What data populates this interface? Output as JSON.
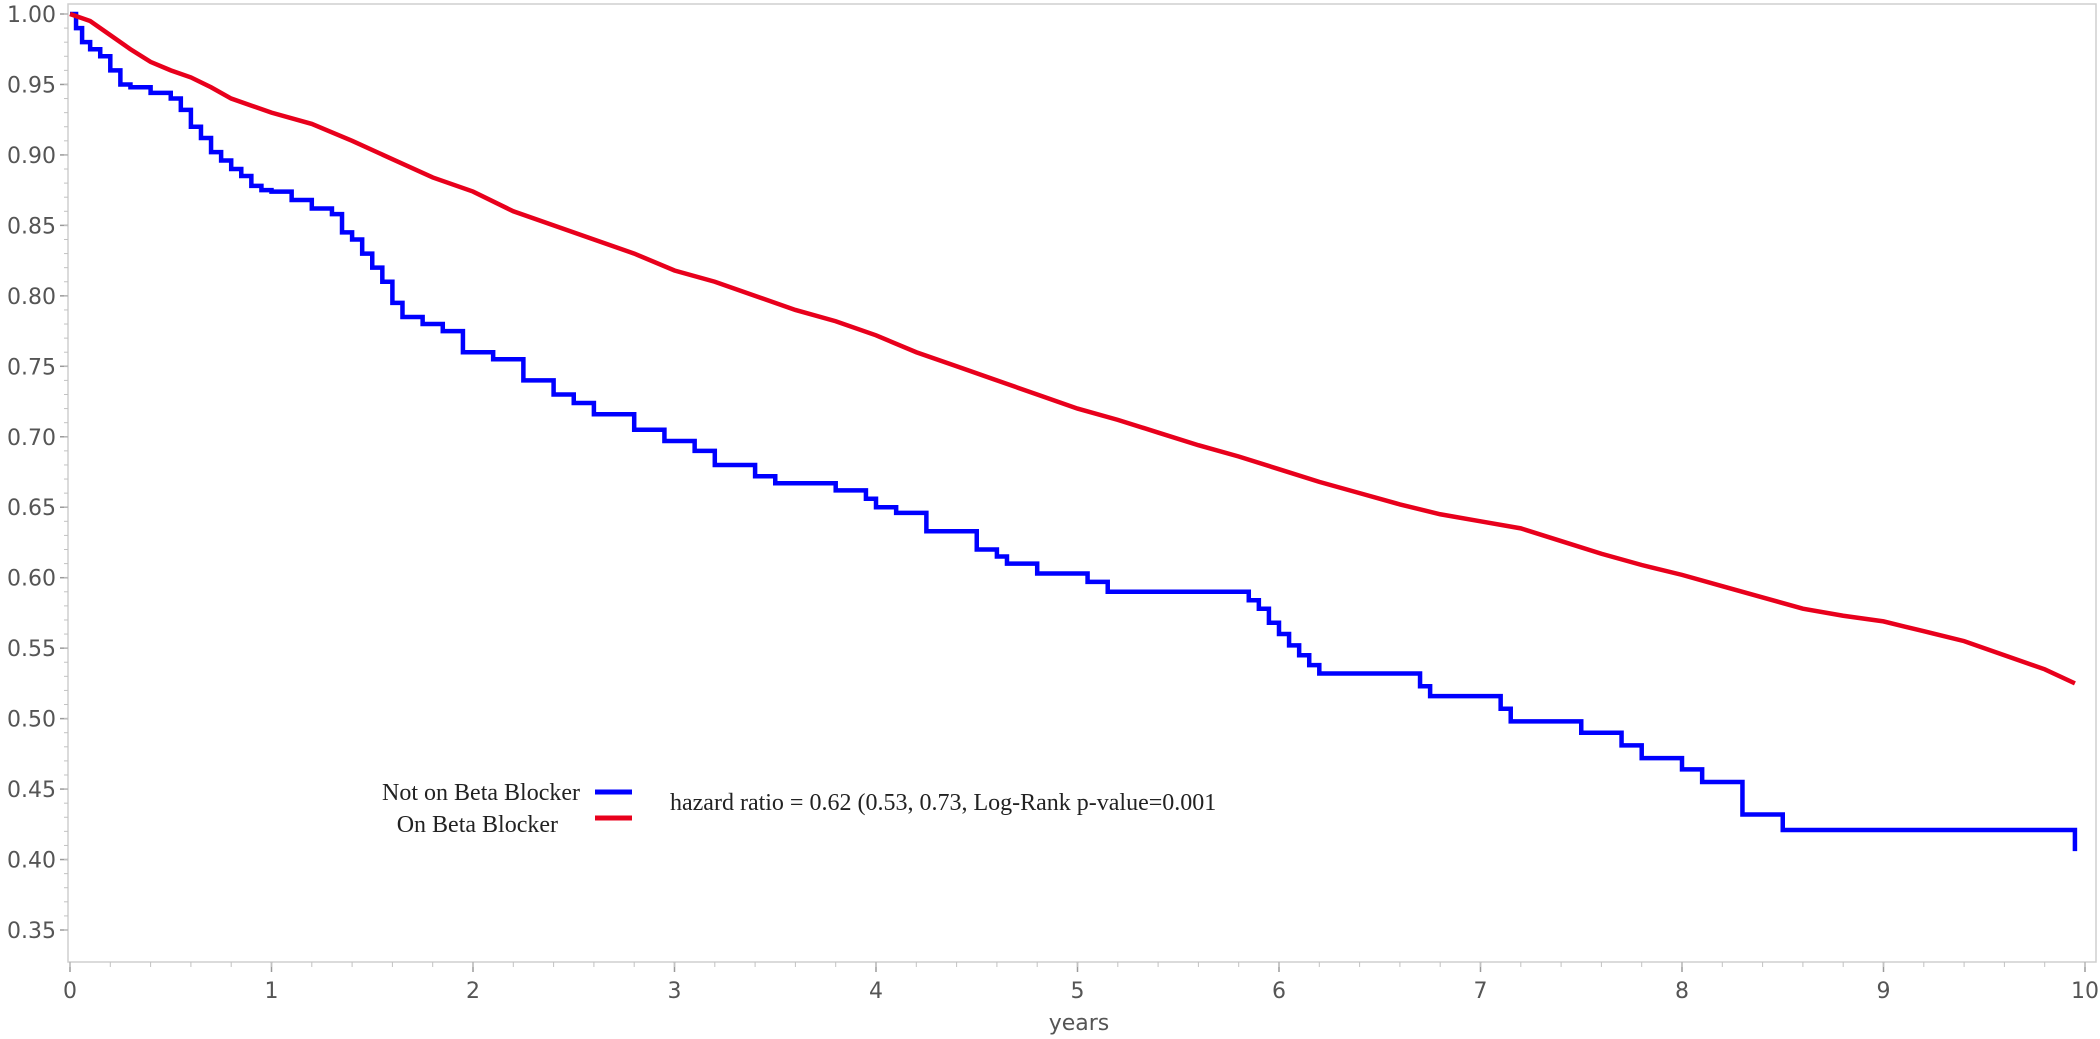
{
  "chart_data": {
    "type": "line",
    "title": "",
    "xlabel": "years",
    "ylabel": "",
    "xlim": [
      0,
      10
    ],
    "ylim": [
      0.35,
      1.0
    ],
    "x_ticks": [
      0,
      1,
      2,
      3,
      4,
      5,
      6,
      7,
      8,
      9,
      10
    ],
    "x_tick_labels": [
      "0",
      "1",
      "2",
      "3",
      "4",
      "5",
      "6",
      "7",
      "8",
      "9",
      "10"
    ],
    "y_ticks": [
      1.0,
      0.95,
      0.9,
      0.85,
      0.8,
      0.75,
      0.7,
      0.65,
      0.6,
      0.55,
      0.5,
      0.45,
      0.4,
      0.35
    ],
    "y_tick_labels": [
      "1.00",
      "0.95",
      "0.90",
      "0.85",
      "0.80",
      "0.75",
      "0.70",
      "0.65",
      "0.60",
      "0.55",
      "0.50",
      "0.45",
      "0.40",
      "0.35"
    ],
    "grid": false,
    "legend_position": "bottom-left",
    "annotation": "hazard ratio = 0.62 (0.53, 0.73, Log-Rank p-value=0.001",
    "series": [
      {
        "name": "Not on Beta Blocker",
        "color": "#0000ff",
        "step": true,
        "x": [
          0,
          0.03,
          0.06,
          0.1,
          0.15,
          0.2,
          0.25,
          0.3,
          0.4,
          0.5,
          0.55,
          0.6,
          0.65,
          0.7,
          0.75,
          0.8,
          0.85,
          0.9,
          0.95,
          1.0,
          1.1,
          1.2,
          1.3,
          1.35,
          1.4,
          1.45,
          1.5,
          1.55,
          1.6,
          1.65,
          1.75,
          1.85,
          1.95,
          2.1,
          2.25,
          2.4,
          2.5,
          2.6,
          2.8,
          2.95,
          3.1,
          3.2,
          3.4,
          3.5,
          3.8,
          3.95,
          4.0,
          4.1,
          4.25,
          4.5,
          4.6,
          4.65,
          4.8,
          5.05,
          5.15,
          5.85,
          5.9,
          5.95,
          6.0,
          6.05,
          6.1,
          6.15,
          6.2,
          6.25,
          6.7,
          6.75,
          7.1,
          7.15,
          7.5,
          7.7,
          7.8,
          8.0,
          8.1,
          8.3,
          8.5,
          9.9,
          9.95
        ],
        "y": [
          1.0,
          0.99,
          0.98,
          0.975,
          0.97,
          0.96,
          0.95,
          0.948,
          0.944,
          0.94,
          0.932,
          0.92,
          0.912,
          0.902,
          0.896,
          0.89,
          0.885,
          0.878,
          0.875,
          0.874,
          0.868,
          0.862,
          0.858,
          0.845,
          0.84,
          0.83,
          0.82,
          0.81,
          0.795,
          0.785,
          0.78,
          0.775,
          0.76,
          0.755,
          0.74,
          0.73,
          0.724,
          0.716,
          0.705,
          0.697,
          0.69,
          0.68,
          0.672,
          0.667,
          0.662,
          0.656,
          0.65,
          0.646,
          0.633,
          0.62,
          0.615,
          0.61,
          0.603,
          0.597,
          0.59,
          0.584,
          0.578,
          0.568,
          0.56,
          0.552,
          0.545,
          0.538,
          0.532,
          0.532,
          0.523,
          0.516,
          0.507,
          0.498,
          0.49,
          0.481,
          0.472,
          0.464,
          0.455,
          0.432,
          0.421,
          0.421,
          0.406
        ]
      },
      {
        "name": "On Beta Blocker",
        "color": "#e8001c",
        "step": false,
        "x": [
          0,
          0.1,
          0.2,
          0.3,
          0.4,
          0.5,
          0.6,
          0.7,
          0.8,
          0.9,
          1.0,
          1.2,
          1.4,
          1.6,
          1.8,
          2.0,
          2.2,
          2.4,
          2.6,
          2.8,
          3.0,
          3.2,
          3.4,
          3.6,
          3.8,
          4.0,
          4.2,
          4.4,
          4.6,
          4.8,
          5.0,
          5.2,
          5.4,
          5.6,
          5.8,
          6.0,
          6.2,
          6.4,
          6.6,
          6.8,
          7.0,
          7.2,
          7.4,
          7.6,
          7.8,
          8.0,
          8.2,
          8.4,
          8.6,
          8.8,
          9.0,
          9.2,
          9.4,
          9.6,
          9.8,
          9.95
        ],
        "y": [
          1.0,
          0.995,
          0.985,
          0.975,
          0.966,
          0.96,
          0.955,
          0.948,
          0.94,
          0.935,
          0.93,
          0.922,
          0.91,
          0.897,
          0.884,
          0.874,
          0.86,
          0.85,
          0.84,
          0.83,
          0.818,
          0.81,
          0.8,
          0.79,
          0.782,
          0.772,
          0.76,
          0.75,
          0.74,
          0.73,
          0.72,
          0.712,
          0.703,
          0.694,
          0.686,
          0.677,
          0.668,
          0.66,
          0.652,
          0.645,
          0.64,
          0.635,
          0.626,
          0.617,
          0.609,
          0.602,
          0.594,
          0.586,
          0.578,
          0.573,
          0.569,
          0.562,
          0.555,
          0.545,
          0.535,
          0.525
        ]
      }
    ]
  }
}
